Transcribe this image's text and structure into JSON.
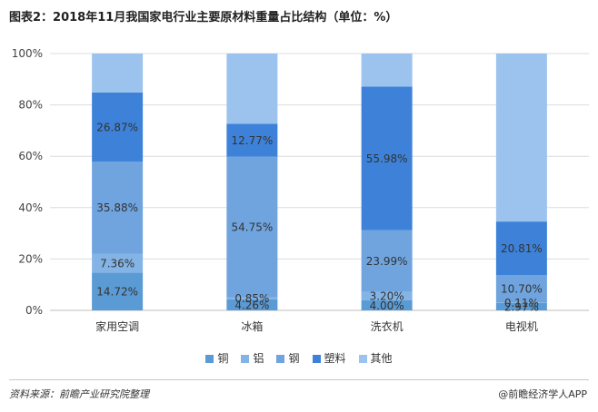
{
  "title": "图表2：2018年11月我国家电行业主要原材料重量占比结构（单位：%）",
  "chart_data": {
    "type": "bar",
    "stacked": true,
    "categories": [
      "家用空调",
      "冰箱",
      "洗衣机",
      "电视机"
    ],
    "ylim": [
      0,
      100
    ],
    "yticks": [
      "0%",
      "20%",
      "40%",
      "60%",
      "80%",
      "100%"
    ],
    "grid": true,
    "legend_position": "bottom",
    "series": [
      {
        "name": "铜",
        "color": "#5b9bd5",
        "values": [
          14.72,
          4.26,
          4.0,
          2.97
        ],
        "labels": [
          "14.72%",
          "4.26%",
          "4.00%",
          "2.97%"
        ]
      },
      {
        "name": "铝",
        "color": "#84b4e5",
        "values": [
          7.36,
          0.85,
          3.2,
          0.11
        ],
        "labels": [
          "7.36%",
          "0.85%",
          "3.20%",
          "0.11%"
        ]
      },
      {
        "name": "钢",
        "color": "#6fa4df",
        "values": [
          35.88,
          54.75,
          23.99,
          10.7
        ],
        "labels": [
          "35.88%",
          "54.75%",
          "23.99%",
          "10.70%"
        ]
      },
      {
        "name": "塑料",
        "color": "#3d82d8",
        "values": [
          26.87,
          12.77,
          55.98,
          20.81
        ],
        "labels": [
          "26.87%",
          "12.77%",
          "55.98%",
          "20.81%"
        ]
      },
      {
        "name": "其他",
        "color": "#9cc3ee",
        "values": [
          15.17,
          27.37,
          12.83,
          65.41
        ],
        "labels": [
          "",
          "",
          "",
          ""
        ]
      }
    ]
  },
  "footer": {
    "source": "资料来源：前瞻产业研究院整理",
    "brand": "@前瞻经济学人APP"
  }
}
